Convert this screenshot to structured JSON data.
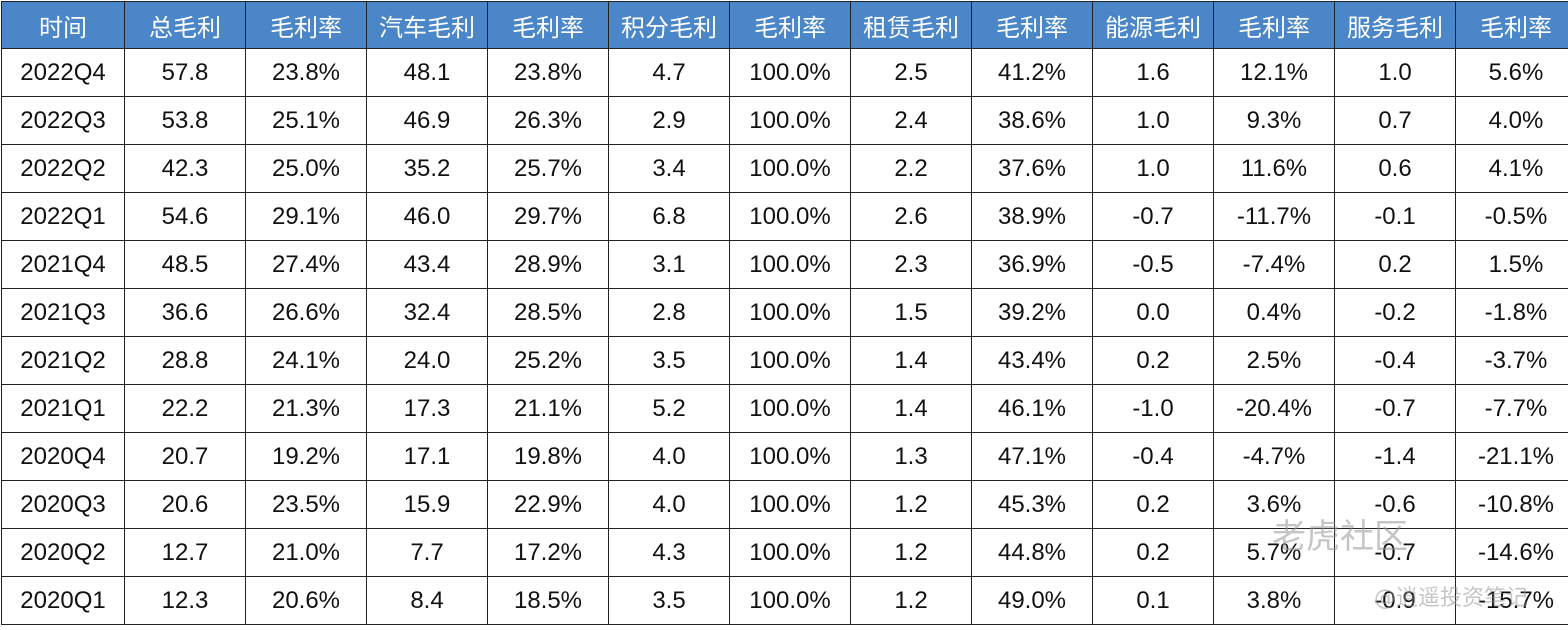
{
  "table": {
    "header": [
      "时间",
      "总毛利",
      "毛利率",
      "汽车毛利",
      "毛利率",
      "积分毛利",
      "毛利率",
      "租赁毛利",
      "毛利率",
      "能源毛利",
      "毛利率",
      "服务毛利",
      "毛利率"
    ],
    "rows": [
      [
        "2022Q4",
        "57.8",
        "23.8%",
        "48.1",
        "23.8%",
        "4.7",
        "100.0%",
        "2.5",
        "41.2%",
        "1.6",
        "12.1%",
        "1.0",
        "5.6%"
      ],
      [
        "2022Q3",
        "53.8",
        "25.1%",
        "46.9",
        "26.3%",
        "2.9",
        "100.0%",
        "2.4",
        "38.6%",
        "1.0",
        "9.3%",
        "0.7",
        "4.0%"
      ],
      [
        "2022Q2",
        "42.3",
        "25.0%",
        "35.2",
        "25.7%",
        "3.4",
        "100.0%",
        "2.2",
        "37.6%",
        "1.0",
        "11.6%",
        "0.6",
        "4.1%"
      ],
      [
        "2022Q1",
        "54.6",
        "29.1%",
        "46.0",
        "29.7%",
        "6.8",
        "100.0%",
        "2.6",
        "38.9%",
        "-0.7",
        "-11.7%",
        "-0.1",
        "-0.5%"
      ],
      [
        "2021Q4",
        "48.5",
        "27.4%",
        "43.4",
        "28.9%",
        "3.1",
        "100.0%",
        "2.3",
        "36.9%",
        "-0.5",
        "-7.4%",
        "0.2",
        "1.5%"
      ],
      [
        "2021Q3",
        "36.6",
        "26.6%",
        "32.4",
        "28.5%",
        "2.8",
        "100.0%",
        "1.5",
        "39.2%",
        "0.0",
        "0.4%",
        "-0.2",
        "-1.8%"
      ],
      [
        "2021Q2",
        "28.8",
        "24.1%",
        "24.0",
        "25.2%",
        "3.5",
        "100.0%",
        "1.4",
        "43.4%",
        "0.2",
        "2.5%",
        "-0.4",
        "-3.7%"
      ],
      [
        "2021Q1",
        "22.2",
        "21.3%",
        "17.3",
        "21.1%",
        "5.2",
        "100.0%",
        "1.4",
        "46.1%",
        "-1.0",
        "-20.4%",
        "-0.7",
        "-7.7%"
      ],
      [
        "2020Q4",
        "20.7",
        "19.2%",
        "17.1",
        "19.8%",
        "4.0",
        "100.0%",
        "1.3",
        "47.1%",
        "-0.4",
        "-4.7%",
        "-1.4",
        "-21.1%"
      ],
      [
        "2020Q3",
        "20.6",
        "23.5%",
        "15.9",
        "22.9%",
        "4.0",
        "100.0%",
        "1.2",
        "45.3%",
        "0.2",
        "3.6%",
        "-0.6",
        "-10.8%"
      ],
      [
        "2020Q2",
        "12.7",
        "21.0%",
        "7.7",
        "17.2%",
        "4.3",
        "100.0%",
        "1.2",
        "44.8%",
        "0.2",
        "5.7%",
        "-0.7",
        "-14.6%"
      ],
      [
        "2020Q1",
        "12.3",
        "20.6%",
        "8.4",
        "18.5%",
        "3.5",
        "100.0%",
        "1.2",
        "49.0%",
        "0.1",
        "3.8%",
        "-0.9",
        "-15.7%"
      ]
    ]
  },
  "watermark": {
    "brand": "老虎社区",
    "author": "@逍遥投资笔记"
  }
}
